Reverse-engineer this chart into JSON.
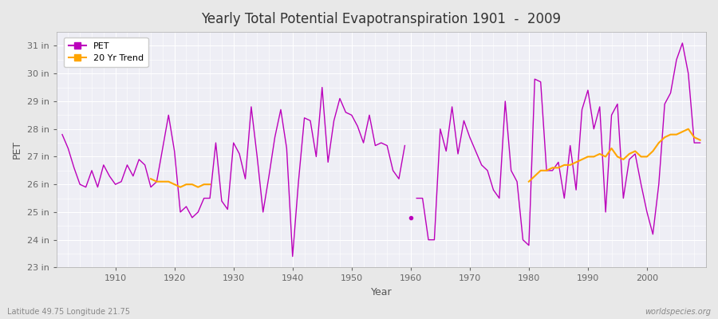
{
  "title": "Yearly Total Potential Evapotranspiration 1901  -  2009",
  "xlabel": "Year",
  "ylabel": "PET",
  "footnote_left": "Latitude 49.75 Longitude 21.75",
  "footnote_right": "worldspecies.org",
  "years_seg1": [
    1901,
    1902,
    1903,
    1904,
    1905,
    1906,
    1907,
    1908,
    1909,
    1910,
    1911,
    1912,
    1913,
    1914,
    1915,
    1916,
    1917,
    1918,
    1919,
    1920,
    1921,
    1922,
    1923,
    1924,
    1925,
    1926,
    1927,
    1928,
    1929,
    1930,
    1931,
    1932,
    1933,
    1934,
    1935,
    1936,
    1937,
    1938,
    1939,
    1940,
    1941,
    1942,
    1943,
    1944,
    1945,
    1946,
    1947,
    1948,
    1949,
    1950,
    1951,
    1952,
    1953,
    1954,
    1955,
    1956,
    1957,
    1958,
    1959
  ],
  "pet_seg1": [
    27.8,
    27.3,
    26.6,
    26.0,
    25.9,
    26.5,
    25.9,
    26.7,
    26.3,
    26.0,
    26.1,
    26.7,
    26.3,
    26.9,
    26.7,
    25.9,
    26.1,
    27.3,
    28.5,
    27.2,
    25.0,
    25.2,
    24.8,
    25.0,
    25.5,
    25.5,
    27.5,
    25.4,
    25.1,
    27.5,
    27.1,
    26.2,
    28.8,
    27.0,
    25.0,
    26.3,
    27.7,
    28.7,
    27.3,
    23.4,
    26.1,
    28.4,
    28.3,
    27.0,
    29.5,
    26.8,
    28.3,
    29.1,
    28.6,
    28.5,
    28.1,
    27.5,
    28.5,
    27.4,
    27.5,
    27.4,
    26.5,
    26.2,
    27.4
  ],
  "dot_year": [
    1960
  ],
  "dot_pet": [
    24.8
  ],
  "years_seg2": [
    1961,
    1962,
    1963,
    1964,
    1965,
    1966,
    1967,
    1968,
    1969,
    1970,
    1971,
    1972,
    1973,
    1974,
    1975,
    1976,
    1977,
    1978,
    1979,
    1980,
    1981,
    1982,
    1983,
    1984,
    1985,
    1986,
    1987,
    1988,
    1989,
    1990,
    1991,
    1992,
    1993,
    1994,
    1995,
    1996,
    1997,
    1998,
    1999,
    2000,
    2001,
    2002,
    2003,
    2004,
    2005,
    2006,
    2007,
    2008,
    2009
  ],
  "pet_seg2": [
    25.5,
    25.5,
    24.0,
    24.0,
    28.0,
    27.2,
    28.8,
    27.1,
    28.3,
    27.7,
    27.2,
    26.7,
    26.5,
    25.8,
    25.5,
    29.0,
    26.5,
    26.1,
    24.0,
    23.8,
    29.8,
    29.7,
    26.5,
    26.5,
    26.8,
    25.5,
    27.4,
    25.8,
    28.7,
    29.4,
    28.0,
    28.8,
    25.0,
    28.5,
    28.9,
    25.5,
    26.9,
    27.1,
    26.0,
    25.0,
    24.2,
    26.0,
    28.9,
    29.3,
    30.5,
    31.1,
    30.0,
    27.5,
    27.5
  ],
  "trend_seg1_years": [
    1916,
    1917,
    1918,
    1919,
    1920,
    1921,
    1922,
    1923,
    1924,
    1925,
    1926
  ],
  "trend_seg1_values": [
    26.2,
    26.1,
    26.1,
    26.1,
    26.0,
    25.9,
    26.0,
    26.0,
    25.9,
    26.0,
    26.0
  ],
  "trend_seg2_years": [
    1980,
    1981,
    1982,
    1983,
    1984,
    1985,
    1986,
    1987,
    1988,
    1989,
    1990,
    1991,
    1992,
    1993,
    1994,
    1995,
    1996,
    1997,
    1998,
    1999,
    2000,
    2001,
    2002,
    2003,
    2004,
    2005,
    2006,
    2007,
    2008,
    2009
  ],
  "trend_seg2_values": [
    26.1,
    26.3,
    26.5,
    26.5,
    26.6,
    26.6,
    26.7,
    26.7,
    26.8,
    26.9,
    27.0,
    27.0,
    27.1,
    27.0,
    27.3,
    27.0,
    26.9,
    27.1,
    27.2,
    27.0,
    27.0,
    27.2,
    27.5,
    27.7,
    27.8,
    27.8,
    27.9,
    28.0,
    27.7,
    27.6
  ],
  "pet_color": "#BB00BB",
  "trend_color": "#FFA500",
  "bg_color": "#E8E8E8",
  "plot_bg_color": "#EEEEF5",
  "grid_color": "#FFFFFF",
  "ylim": [
    23.0,
    31.5
  ],
  "yticks": [
    23,
    24,
    25,
    26,
    27,
    28,
    29,
    30,
    31
  ],
  "xlim": [
    1900,
    2010
  ]
}
